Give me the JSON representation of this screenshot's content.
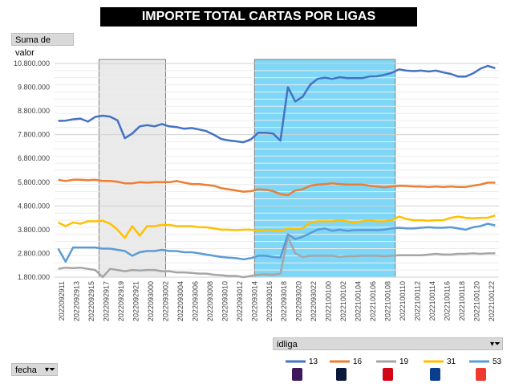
{
  "title": "IMPORTE TOTAL CARTAS POR LIGAS",
  "value_field_label": "Suma de valor",
  "date_field_label": "fecha",
  "legend_field_label": "idliga",
  "icons": {
    "filter": "filter-funnel-icon",
    "league_13": "premier-league-logo-icon",
    "league_16": "ligue-1-logo-icon",
    "league_19": "bundesliga-logo-icon",
    "league_31": "serie-a-logo-icon",
    "league_53": "laliga-logo-icon"
  },
  "chart_data": {
    "type": "line",
    "ylim": [
      1800000,
      10800000
    ],
    "yticks": [
      "1.800.000",
      "2.800.000",
      "3.800.000",
      "4.800.000",
      "5.800.000",
      "6.800.000",
      "7.800.000",
      "8.800.000",
      "9.800.000",
      "10.800.000"
    ],
    "ytick_values": [
      1800000,
      2800000,
      3800000,
      4800000,
      5800000,
      6800000,
      7800000,
      8800000,
      9800000,
      10800000
    ],
    "grid": true,
    "legend_position": "bottom-right",
    "x_labels": [
      "2022092911",
      "2022092913",
      "2022092915",
      "2022092917",
      "2022092919",
      "2022092921",
      "2022093000",
      "2022093002",
      "2022093004",
      "2022093006",
      "2022093008",
      "2022093010",
      "2022093012",
      "2022093014",
      "2022093016",
      "2022093018",
      "2022093020",
      "2022093022",
      "2022100100",
      "2022100102",
      "2022100104",
      "2022100106",
      "2022100108",
      "2022100110",
      "2022100112",
      "2022100114",
      "2022100116",
      "2022100118",
      "2022100120",
      "2022100122"
    ],
    "highlights": [
      {
        "from_index": 6,
        "to_index": 15,
        "color": "#d9d9d9"
      },
      {
        "from_index": 27,
        "to_index": 46,
        "color": "#00b0f0"
      }
    ],
    "series": [
      {
        "name": "13",
        "color": "#4472c4",
        "values": [
          8380000,
          8390000,
          8450000,
          8480000,
          8350000,
          8550000,
          8600000,
          8560000,
          8400000,
          7650000,
          7850000,
          8150000,
          8200000,
          8150000,
          8250000,
          8150000,
          8120000,
          8050000,
          8080000,
          8020000,
          7950000,
          7800000,
          7620000,
          7560000,
          7520000,
          7480000,
          7600000,
          7880000,
          7880000,
          7850000,
          7550000,
          9800000,
          9200000,
          9400000,
          9900000,
          10150000,
          10200000,
          10150000,
          10220000,
          10180000,
          10180000,
          10180000,
          10250000,
          10260000,
          10320000,
          10400000,
          10550000,
          10500000,
          10480000,
          10500000,
          10460000,
          10500000,
          10420000,
          10360000,
          10250000,
          10250000,
          10380000,
          10580000,
          10700000,
          10600000
        ]
      },
      {
        "name": "16",
        "color": "#ed7d31",
        "values": [
          5900000,
          5850000,
          5900000,
          5900000,
          5880000,
          5900000,
          5850000,
          5850000,
          5820000,
          5750000,
          5750000,
          5800000,
          5780000,
          5800000,
          5800000,
          5800000,
          5850000,
          5780000,
          5720000,
          5720000,
          5680000,
          5650000,
          5550000,
          5500000,
          5450000,
          5400000,
          5420000,
          5500000,
          5480000,
          5420000,
          5300000,
          5250000,
          5450000,
          5500000,
          5650000,
          5700000,
          5720000,
          5750000,
          5720000,
          5700000,
          5700000,
          5700000,
          5650000,
          5620000,
          5580000,
          5620000,
          5650000,
          5640000,
          5620000,
          5620000,
          5600000,
          5620000,
          5600000,
          5620000,
          5600000,
          5600000,
          5650000,
          5700000,
          5780000,
          5780000
        ]
      },
      {
        "name": "19",
        "color": "#a5a5a5",
        "values": [
          2150000,
          2200000,
          2180000,
          2200000,
          2150000,
          2100000,
          1800000,
          2150000,
          2100000,
          2050000,
          2100000,
          2080000,
          2100000,
          2100000,
          2050000,
          2050000,
          2000000,
          2000000,
          1980000,
          1950000,
          1950000,
          1900000,
          1880000,
          1850000,
          1850000,
          1800000,
          1850000,
          1900000,
          1920000,
          1900000,
          1950000,
          3500000,
          2800000,
          2650000,
          2700000,
          2700000,
          2700000,
          2700000,
          2650000,
          2680000,
          2680000,
          2700000,
          2700000,
          2700000,
          2680000,
          2700000,
          2720000,
          2720000,
          2720000,
          2720000,
          2750000,
          2780000,
          2750000,
          2750000,
          2780000,
          2780000,
          2800000,
          2780000,
          2800000,
          2800000
        ]
      },
      {
        "name": "31",
        "color": "#ffc000",
        "values": [
          4100000,
          3950000,
          4100000,
          4050000,
          4150000,
          4150000,
          4180000,
          4050000,
          3800000,
          3450000,
          3950000,
          3550000,
          3950000,
          3950000,
          4000000,
          4000000,
          3950000,
          3950000,
          3950000,
          3900000,
          3900000,
          3850000,
          3800000,
          3800000,
          3780000,
          3800000,
          3800000,
          3750000,
          3800000,
          3780000,
          3750000,
          3850000,
          3820000,
          3850000,
          4100000,
          4150000,
          4150000,
          4150000,
          4200000,
          4150000,
          4100000,
          4150000,
          4200000,
          4150000,
          4150000,
          4200000,
          4350000,
          4250000,
          4200000,
          4200000,
          4180000,
          4200000,
          4200000,
          4300000,
          4350000,
          4300000,
          4280000,
          4300000,
          4300000,
          4400000
        ]
      },
      {
        "name": "53",
        "color": "#5b9bd5",
        "values": [
          3000000,
          2450000,
          3050000,
          3050000,
          3050000,
          3050000,
          3000000,
          3000000,
          2950000,
          2900000,
          2700000,
          2850000,
          2900000,
          2900000,
          2950000,
          2900000,
          2900000,
          2850000,
          2850000,
          2800000,
          2750000,
          2700000,
          2650000,
          2620000,
          2600000,
          2550000,
          2600000,
          2700000,
          2700000,
          2650000,
          2620000,
          3600000,
          3400000,
          3500000,
          3650000,
          3800000,
          3850000,
          3750000,
          3800000,
          3750000,
          3780000,
          3780000,
          3780000,
          3780000,
          3800000,
          3850000,
          3880000,
          3850000,
          3850000,
          3880000,
          3900000,
          3880000,
          3880000,
          3900000,
          3850000,
          3800000,
          3900000,
          3950000,
          4050000,
          3980000
        ]
      }
    ]
  }
}
